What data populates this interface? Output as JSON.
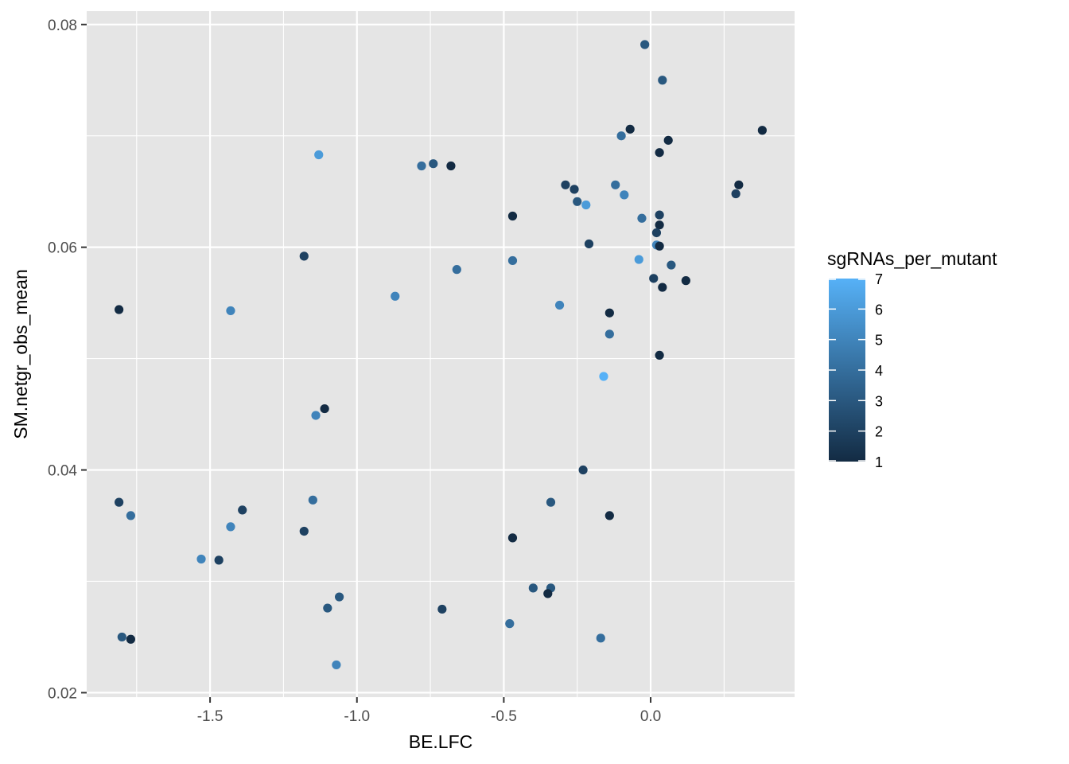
{
  "chart_data": {
    "type": "scatter",
    "title": "",
    "xlabel": "BE.LFC",
    "ylabel": "SM.netgr_obs_mean",
    "xlim": [
      -1.92,
      0.49
    ],
    "ylim": [
      0.0196,
      0.0812
    ],
    "x_ticks": [
      -1.5,
      -1.0,
      -0.5,
      0.0
    ],
    "x_tick_labels": [
      "-1.5",
      "-1.0",
      "-0.5",
      "0.0"
    ],
    "y_ticks": [
      0.02,
      0.04,
      0.06,
      0.08
    ],
    "y_tick_labels": [
      "0.02",
      "0.04",
      "0.06",
      "0.08"
    ],
    "grid": true,
    "legend": {
      "title": "sgRNAs_per_mutant",
      "placement": "right",
      "type": "colorbar",
      "min": 1,
      "max": 7,
      "ticks": [
        1,
        2,
        3,
        4,
        5,
        6,
        7
      ],
      "tick_labels": [
        "1",
        "2",
        "3",
        "4",
        "5",
        "6",
        "7"
      ],
      "low_color": "#132B43",
      "high_color": "#56B1F7"
    },
    "colors": {
      "panel_background": "#e5e5e5",
      "grid_line": "#ffffff"
    },
    "points": [
      {
        "x": -0.02,
        "y": 0.0782,
        "c": 3
      },
      {
        "x": 0.04,
        "y": 0.075,
        "c": 3
      },
      {
        "x": 0.38,
        "y": 0.0705,
        "c": 1
      },
      {
        "x": -0.07,
        "y": 0.0706,
        "c": 1
      },
      {
        "x": -0.1,
        "y": 0.07,
        "c": 4
      },
      {
        "x": 0.06,
        "y": 0.0696,
        "c": 1
      },
      {
        "x": 0.03,
        "y": 0.0685,
        "c": 1
      },
      {
        "x": -1.13,
        "y": 0.0683,
        "c": 6
      },
      {
        "x": -0.78,
        "y": 0.0673,
        "c": 4
      },
      {
        "x": -0.74,
        "y": 0.0675,
        "c": 3
      },
      {
        "x": -0.68,
        "y": 0.0673,
        "c": 1
      },
      {
        "x": -0.29,
        "y": 0.0656,
        "c": 2
      },
      {
        "x": -0.26,
        "y": 0.0652,
        "c": 2
      },
      {
        "x": -0.25,
        "y": 0.0641,
        "c": 3
      },
      {
        "x": -0.22,
        "y": 0.0638,
        "c": 6
      },
      {
        "x": -0.12,
        "y": 0.0656,
        "c": 4
      },
      {
        "x": -0.09,
        "y": 0.0647,
        "c": 5
      },
      {
        "x": 0.3,
        "y": 0.0656,
        "c": 1
      },
      {
        "x": 0.29,
        "y": 0.0648,
        "c": 2
      },
      {
        "x": -0.47,
        "y": 0.0628,
        "c": 1
      },
      {
        "x": -0.03,
        "y": 0.0626,
        "c": 4
      },
      {
        "x": 0.03,
        "y": 0.0629,
        "c": 2
      },
      {
        "x": 0.03,
        "y": 0.062,
        "c": 1
      },
      {
        "x": 0.02,
        "y": 0.0613,
        "c": 2
      },
      {
        "x": 0.02,
        "y": 0.0602,
        "c": 5
      },
      {
        "x": 0.03,
        "y": 0.0601,
        "c": 1
      },
      {
        "x": -0.21,
        "y": 0.0603,
        "c": 2
      },
      {
        "x": -1.18,
        "y": 0.0592,
        "c": 2
      },
      {
        "x": -0.47,
        "y": 0.0588,
        "c": 4
      },
      {
        "x": -0.04,
        "y": 0.0589,
        "c": 6
      },
      {
        "x": 0.07,
        "y": 0.0584,
        "c": 3
      },
      {
        "x": -0.66,
        "y": 0.058,
        "c": 4
      },
      {
        "x": 0.01,
        "y": 0.0572,
        "c": 2
      },
      {
        "x": 0.12,
        "y": 0.057,
        "c": 1
      },
      {
        "x": 0.04,
        "y": 0.0564,
        "c": 1
      },
      {
        "x": -0.87,
        "y": 0.0556,
        "c": 5
      },
      {
        "x": -0.31,
        "y": 0.0548,
        "c": 5
      },
      {
        "x": -1.81,
        "y": 0.0544,
        "c": 1
      },
      {
        "x": -1.43,
        "y": 0.0543,
        "c": 5
      },
      {
        "x": -0.14,
        "y": 0.0541,
        "c": 1
      },
      {
        "x": -0.14,
        "y": 0.0522,
        "c": 4
      },
      {
        "x": 0.03,
        "y": 0.0503,
        "c": 1
      },
      {
        "x": -0.16,
        "y": 0.0484,
        "c": 7
      },
      {
        "x": -1.11,
        "y": 0.0455,
        "c": 1
      },
      {
        "x": -1.14,
        "y": 0.0449,
        "c": 5
      },
      {
        "x": -0.23,
        "y": 0.04,
        "c": 2
      },
      {
        "x": -1.81,
        "y": 0.0371,
        "c": 2
      },
      {
        "x": -1.15,
        "y": 0.0373,
        "c": 4
      },
      {
        "x": -0.34,
        "y": 0.0371,
        "c": 3
      },
      {
        "x": -1.39,
        "y": 0.0364,
        "c": 2
      },
      {
        "x": -1.77,
        "y": 0.0359,
        "c": 4
      },
      {
        "x": -0.14,
        "y": 0.0359,
        "c": 1
      },
      {
        "x": -1.43,
        "y": 0.0349,
        "c": 5
      },
      {
        "x": -1.18,
        "y": 0.0345,
        "c": 2
      },
      {
        "x": -0.47,
        "y": 0.0339,
        "c": 1
      },
      {
        "x": -1.53,
        "y": 0.032,
        "c": 5
      },
      {
        "x": -1.47,
        "y": 0.0319,
        "c": 2
      },
      {
        "x": -0.4,
        "y": 0.0294,
        "c": 3
      },
      {
        "x": -0.34,
        "y": 0.0294,
        "c": 3
      },
      {
        "x": -0.35,
        "y": 0.0289,
        "c": 1
      },
      {
        "x": -1.06,
        "y": 0.0286,
        "c": 3
      },
      {
        "x": -1.1,
        "y": 0.0276,
        "c": 3
      },
      {
        "x": -0.71,
        "y": 0.0275,
        "c": 2
      },
      {
        "x": -0.48,
        "y": 0.0262,
        "c": 4
      },
      {
        "x": -1.8,
        "y": 0.025,
        "c": 3
      },
      {
        "x": -1.77,
        "y": 0.0248,
        "c": 1
      },
      {
        "x": -0.17,
        "y": 0.0249,
        "c": 4
      },
      {
        "x": -1.07,
        "y": 0.0225,
        "c": 5
      }
    ]
  }
}
